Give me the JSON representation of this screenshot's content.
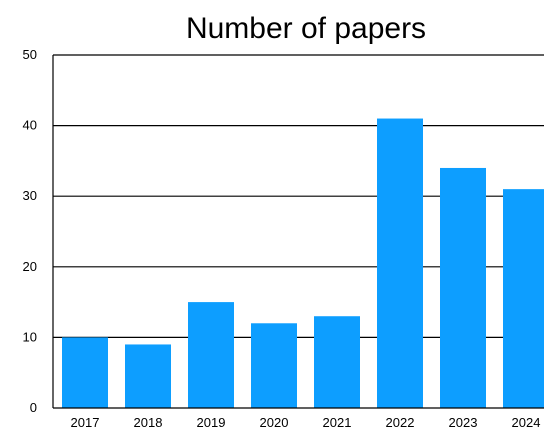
{
  "chart_data": {
    "type": "bar",
    "title": "Number of papers",
    "xlabel": "",
    "ylabel": "",
    "categories": [
      "2017",
      "2018",
      "2019",
      "2020",
      "2021",
      "2022",
      "2023",
      "2024"
    ],
    "values": [
      10,
      9,
      15,
      12,
      13,
      41,
      34,
      31
    ],
    "ylim": [
      0,
      50
    ],
    "yticks": [
      0,
      10,
      20,
      30,
      40,
      50
    ],
    "grid": true,
    "legend": "none",
    "bar_color": "#0d9eff"
  }
}
